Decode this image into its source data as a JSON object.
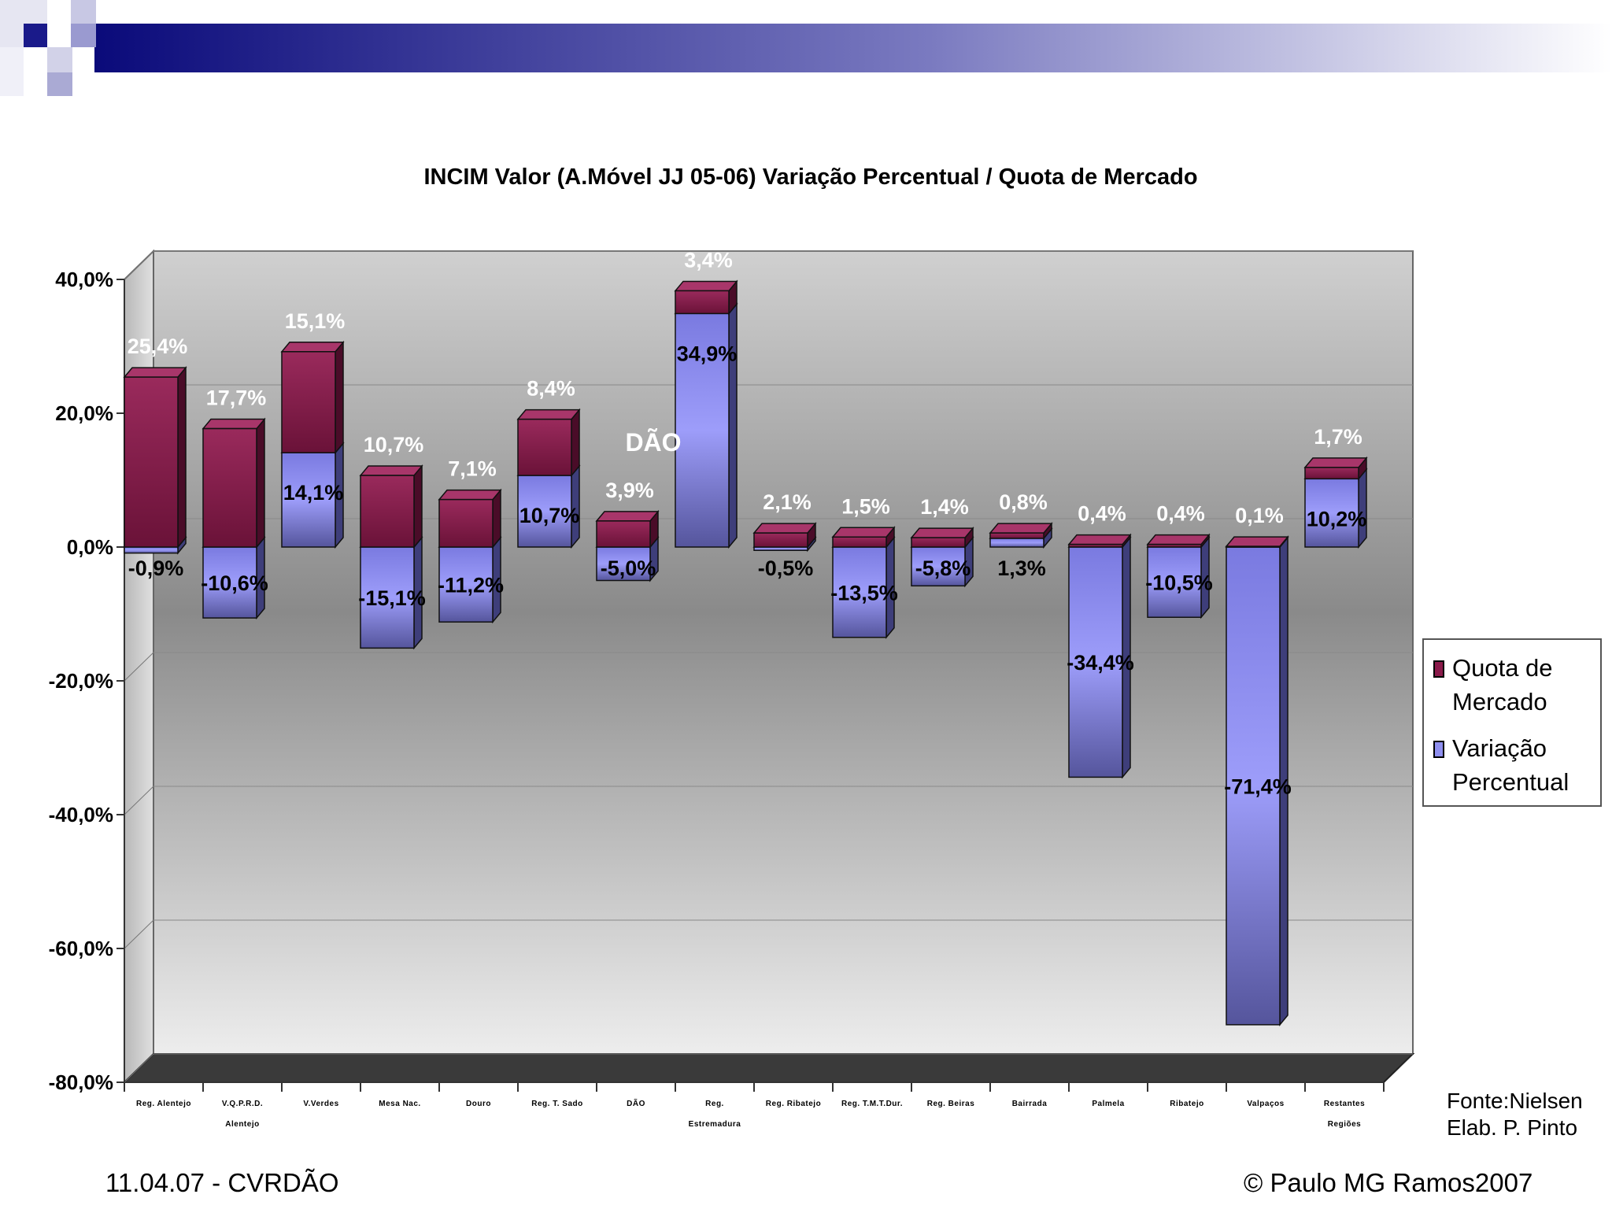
{
  "chart_data": {
    "type": "bar",
    "title": "INCIM Valor (A.Móvel JJ 05-06) Variação Percentual / Quota de Mercado",
    "annotation": "DÃO",
    "categories": [
      {
        "line1": "Reg. Alentejo",
        "line2": ""
      },
      {
        "line1": "V.Q.P.R.D.",
        "line2": "Alentejo"
      },
      {
        "line1": "V.Verdes",
        "line2": ""
      },
      {
        "line1": "Mesa Nac.",
        "line2": ""
      },
      {
        "line1": "Douro",
        "line2": ""
      },
      {
        "line1": "Reg. T. Sado",
        "line2": ""
      },
      {
        "line1": "DÃO",
        "line2": ""
      },
      {
        "line1": "Reg.",
        "line2": "Estremadura"
      },
      {
        "line1": "Reg. Ribatejo",
        "line2": ""
      },
      {
        "line1": "Reg. T.M.T.Dur.",
        "line2": ""
      },
      {
        "line1": "Reg. Beiras",
        "line2": ""
      },
      {
        "line1": "Bairrada",
        "line2": ""
      },
      {
        "line1": "Palmela",
        "line2": ""
      },
      {
        "line1": "Ribatejo",
        "line2": ""
      },
      {
        "line1": "Valpaços",
        "line2": ""
      },
      {
        "line1": "Restantes",
        "line2": "Regiões"
      }
    ],
    "series": [
      {
        "name": "Variação Percentual",
        "color": "#8f8fef",
        "values": [
          -0.9,
          -10.6,
          14.1,
          -15.1,
          -11.2,
          10.7,
          -5.0,
          34.9,
          -0.5,
          -13.5,
          -5.8,
          1.3,
          -34.4,
          -10.5,
          -71.4,
          10.2
        ],
        "labels": [
          "-0,9%",
          "-10,6%",
          "14,1%",
          "-15,1%",
          "-11,2%",
          "10,7%",
          "-5,0%",
          "34,9%",
          "-0,5%",
          "-13,5%",
          "-5,8%",
          "1,3%",
          "-34,4%",
          "-10,5%",
          "-71,4%",
          "10,2%"
        ]
      },
      {
        "name": "Quota de Mercado",
        "color": "#8a1a4a",
        "values": [
          25.4,
          17.7,
          15.1,
          10.7,
          7.1,
          8.4,
          3.9,
          3.4,
          2.1,
          1.5,
          1.4,
          0.8,
          0.4,
          0.4,
          0.1,
          1.7
        ],
        "labels": [
          "25,4%",
          "17,7%",
          "15,1%",
          "10,7%",
          "7,1%",
          "8,4%",
          "3,9%",
          "3,4%",
          "2,1%",
          "1,5%",
          "1,4%",
          "0,8%",
          "0,4%",
          "0,4%",
          "0,1%",
          "1,7%"
        ]
      }
    ],
    "y_ticks": [
      "40,0%",
      "20,0%",
      "0,0%",
      "-20,0%",
      "-40,0%",
      "-60,0%",
      "-80,0%"
    ],
    "ylim": [
      -80,
      40
    ],
    "legend_position": "right"
  },
  "legend": {
    "quota_line1": "Quota de",
    "quota_line2": "Mercado",
    "var_line1": "Variação",
    "var_line2": "Percentual",
    "quota_color": "#8a1a4a",
    "var_color": "#8f8fef"
  },
  "footer": {
    "date": "11.04.07 - CVRDÃO",
    "copyright": "© Paulo MG Ramos2007",
    "source_line1": "Fonte:Nielsen",
    "source_line2": "Elab. P. Pinto"
  }
}
